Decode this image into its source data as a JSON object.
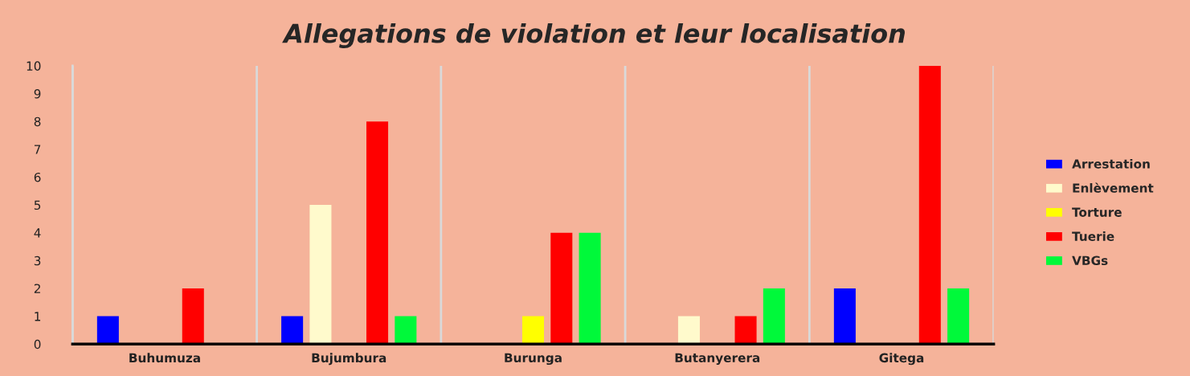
{
  "chart_data": {
    "type": "bar",
    "title": "Allegations de violation et leur localisation",
    "categories": [
      "Buhumuza",
      "Bujumbura",
      "Burunga",
      "Butanyerera",
      "Gitega"
    ],
    "series": [
      {
        "name": "Arrestation",
        "color": "#0000ff",
        "values": [
          1,
          1,
          null,
          null,
          2
        ]
      },
      {
        "name": "Enlèvement",
        "color": "#fffacc",
        "values": [
          null,
          5,
          null,
          1,
          null
        ]
      },
      {
        "name": "Torture",
        "color": "#ffff00",
        "values": [
          null,
          null,
          1,
          null,
          null
        ]
      },
      {
        "name": "Tuerie",
        "color": "#ff0000",
        "values": [
          2,
          8,
          4,
          1,
          10
        ]
      },
      {
        "name": "VBGs",
        "color": "#00f93a",
        "values": [
          null,
          1,
          4,
          2,
          2
        ]
      }
    ],
    "ylim": [
      0,
      10
    ],
    "yticks": [
      0,
      1,
      2,
      3,
      4,
      5,
      6,
      7,
      8,
      9,
      10
    ],
    "grid": "x",
    "legend": "right"
  }
}
